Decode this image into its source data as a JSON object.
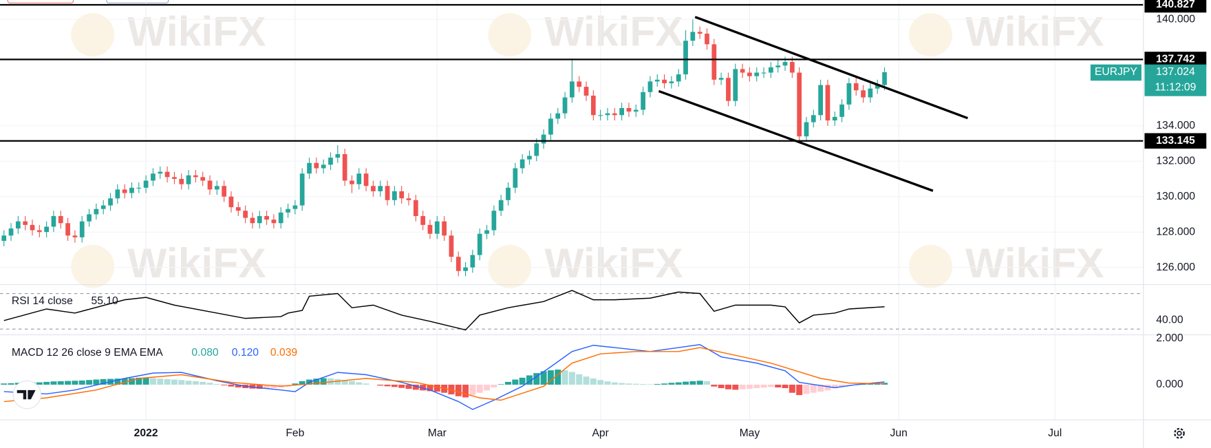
{
  "chart_data": [
    {
      "type": "candlestick",
      "symbol": "EURJPY",
      "countdown": "11:12:09",
      "watermark": "WikiFX",
      "up_color": "#26a69a",
      "down_color": "#ef5350",
      "grid": true,
      "x": [
        -20,
        -19,
        -18,
        -17,
        -16,
        -15,
        -14,
        -13,
        -12,
        -11,
        -10,
        -9,
        -8,
        -7,
        -6,
        -5,
        -4,
        -3,
        -2,
        -1,
        0,
        1,
        2,
        3,
        4,
        5,
        6,
        7,
        8,
        9,
        10,
        11,
        12,
        13,
        14,
        15,
        16,
        17,
        18,
        19,
        20,
        21,
        22,
        23,
        24,
        25,
        26,
        27,
        28,
        29,
        30,
        31,
        32,
        33,
        34,
        35,
        36,
        37,
        38,
        39,
        40,
        41,
        42,
        43,
        44,
        45,
        46,
        47,
        48,
        49,
        50,
        51,
        52,
        53,
        54,
        55,
        56,
        57,
        58,
        59,
        60,
        61,
        62,
        63,
        64,
        65,
        66,
        67,
        68,
        69,
        70,
        71,
        72,
        73,
        74,
        75,
        76,
        77,
        78,
        79,
        80,
        81,
        82,
        83,
        84,
        85,
        86,
        87,
        88,
        89,
        90,
        91,
        92,
        93,
        94,
        95,
        96,
        97,
        98,
        99,
        100,
        101,
        102,
        103,
        104
      ],
      "open": [
        127.5,
        127.8,
        128.2,
        128.6,
        128.4,
        128.1,
        128.0,
        128.3,
        128.9,
        128.5,
        127.8,
        127.7,
        128.6,
        129.0,
        129.3,
        129.5,
        129.9,
        130.4,
        130.2,
        130.5,
        130.5,
        130.9,
        131.3,
        131.4,
        131.1,
        131.0,
        130.7,
        131.2,
        131.1,
        130.9,
        130.4,
        130.6,
        130.0,
        129.4,
        129.2,
        128.8,
        128.5,
        128.9,
        128.7,
        128.5,
        129.1,
        129.3,
        129.5,
        131.3,
        131.9,
        131.6,
        131.8,
        132.2,
        132.4,
        130.9,
        130.7,
        131.3,
        130.6,
        130.3,
        130.6,
        129.8,
        130.3,
        129.9,
        129.8,
        128.9,
        128.4,
        127.9,
        128.6,
        127.8,
        126.6,
        125.8,
        126.0,
        126.7,
        127.9,
        128.1,
        129.2,
        129.8,
        130.5,
        131.6,
        132.1,
        132.3,
        133.0,
        133.5,
        134.4,
        134.7,
        135.6,
        136.5,
        136.2,
        135.7,
        134.6,
        134.6,
        134.7,
        134.6,
        135.0,
        134.8,
        134.9,
        135.9,
        136.5,
        136.6,
        136.4,
        136.5,
        136.9,
        138.8,
        139.3,
        139.2,
        138.6,
        136.6,
        136.7,
        135.4,
        137.2,
        137.0,
        136.8,
        137.0,
        137.0,
        137.3,
        137.4,
        137.6,
        137.0,
        133.4,
        134.2,
        134.6,
        136.3,
        134.3,
        134.5,
        135.2,
        136.4,
        136.0,
        135.6,
        136.1,
        136.3
      ],
      "high": [
        128.1,
        128.5,
        128.9,
        128.9,
        128.7,
        128.4,
        128.6,
        129.2,
        129.2,
        128.8,
        128.1,
        128.9,
        129.3,
        129.6,
        129.8,
        130.2,
        130.7,
        130.7,
        130.8,
        130.8,
        131.2,
        131.6,
        131.7,
        131.7,
        131.4,
        131.3,
        131.5,
        131.5,
        131.4,
        131.2,
        130.9,
        130.9,
        130.3,
        129.7,
        129.5,
        129.1,
        129.2,
        129.2,
        129.0,
        129.4,
        129.6,
        129.8,
        131.6,
        132.2,
        132.2,
        132.1,
        132.5,
        132.9,
        132.7,
        131.2,
        131.6,
        131.6,
        130.9,
        130.9,
        130.9,
        130.6,
        130.6,
        130.2,
        130.1,
        129.2,
        128.7,
        128.9,
        128.9,
        128.1,
        126.9,
        126.3,
        127.0,
        128.2,
        128.4,
        129.5,
        130.1,
        130.8,
        131.9,
        132.4,
        132.6,
        133.3,
        133.8,
        134.7,
        135.0,
        135.9,
        137.8,
        136.8,
        136.5,
        136.0,
        134.9,
        135.0,
        135.0,
        135.3,
        135.3,
        135.2,
        136.2,
        136.8,
        136.9,
        136.9,
        136.8,
        137.2,
        139.4,
        140.0,
        139.6,
        139.5,
        138.9,
        137.0,
        137.0,
        137.5,
        137.5,
        137.3,
        137.3,
        137.3,
        137.6,
        137.7,
        137.9,
        137.9,
        137.3,
        134.5,
        134.9,
        136.6,
        136.6,
        134.8,
        135.5,
        136.7,
        136.7,
        136.3,
        136.4,
        136.6,
        137.3
      ],
      "low": [
        127.2,
        127.5,
        127.9,
        128.1,
        127.8,
        127.7,
        127.7,
        128.0,
        128.2,
        127.5,
        127.4,
        127.4,
        128.3,
        128.7,
        129.0,
        129.2,
        129.6,
        129.9,
        129.9,
        130.2,
        130.2,
        130.6,
        131.0,
        130.8,
        130.7,
        130.4,
        130.4,
        130.8,
        130.6,
        130.1,
        130.1,
        129.7,
        129.1,
        128.9,
        128.5,
        128.2,
        128.2,
        128.4,
        128.2,
        128.2,
        128.8,
        129.0,
        129.2,
        131.0,
        131.3,
        131.3,
        131.5,
        131.9,
        130.6,
        130.2,
        130.4,
        130.3,
        130.0,
        130.0,
        129.5,
        129.5,
        129.6,
        129.5,
        128.6,
        128.1,
        127.6,
        127.6,
        127.5,
        126.3,
        125.5,
        125.5,
        125.7,
        126.4,
        127.6,
        127.8,
        128.9,
        129.5,
        130.2,
        131.3,
        131.8,
        132.0,
        132.7,
        133.2,
        134.1,
        134.4,
        135.3,
        135.9,
        135.4,
        134.3,
        134.3,
        134.3,
        134.3,
        134.3,
        134.5,
        134.5,
        134.6,
        135.6,
        136.2,
        136.1,
        136.1,
        136.2,
        136.6,
        138.5,
        138.9,
        138.3,
        136.3,
        136.3,
        135.1,
        135.1,
        136.7,
        136.5,
        136.5,
        136.7,
        136.7,
        137.0,
        137.1,
        136.7,
        133.0,
        133.1,
        133.9,
        134.3,
        134.0,
        134.0,
        134.2,
        134.9,
        135.7,
        135.3,
        135.3,
        135.8,
        136.0
      ],
      "close": [
        127.8,
        128.2,
        128.6,
        128.4,
        128.1,
        128.0,
        128.3,
        128.9,
        128.5,
        127.8,
        127.7,
        128.6,
        129.0,
        129.3,
        129.5,
        129.9,
        130.4,
        130.2,
        130.5,
        130.5,
        130.9,
        131.3,
        131.4,
        131.1,
        131.0,
        130.7,
        131.2,
        131.1,
        130.9,
        130.4,
        130.6,
        130.0,
        129.4,
        129.2,
        128.8,
        128.5,
        128.9,
        128.7,
        128.5,
        129.1,
        129.3,
        129.5,
        131.3,
        131.9,
        131.6,
        131.8,
        132.2,
        132.4,
        130.9,
        130.7,
        131.3,
        130.6,
        130.3,
        130.6,
        129.8,
        130.3,
        129.9,
        129.8,
        128.9,
        128.4,
        127.9,
        128.6,
        127.8,
        126.6,
        125.8,
        126.0,
        126.7,
        127.9,
        128.1,
        129.2,
        129.8,
        130.5,
        131.6,
        132.1,
        132.3,
        133.0,
        133.5,
        134.4,
        134.7,
        135.6,
        136.5,
        136.2,
        135.7,
        134.6,
        134.6,
        134.7,
        134.6,
        135.0,
        134.8,
        134.9,
        135.9,
        136.5,
        136.6,
        136.4,
        136.5,
        136.9,
        138.8,
        139.3,
        139.2,
        138.6,
        136.6,
        136.7,
        135.4,
        137.2,
        137.0,
        136.8,
        137.0,
        137.0,
        137.3,
        137.4,
        137.6,
        137.0,
        133.4,
        134.2,
        134.6,
        136.3,
        134.3,
        134.5,
        135.2,
        136.4,
        136.0,
        135.6,
        136.1,
        136.3,
        137.024
      ],
      "last_price": 137.024,
      "last_color": "#26a69a",
      "levels": [
        140.827,
        137.742,
        133.145
      ],
      "level_color": "#000000",
      "xlim": [
        -20.55,
        140.4
      ],
      "xticks": [
        {
          "value": 0,
          "label": "2022"
        },
        {
          "value": 21,
          "label": "Feb"
        },
        {
          "value": 41,
          "label": "Mar"
        },
        {
          "value": 64,
          "label": "Apr"
        },
        {
          "value": 85,
          "label": "May"
        },
        {
          "value": 106,
          "label": "Jun"
        },
        {
          "value": 128,
          "label": "Jul"
        }
      ],
      "ylim": [
        125.05,
        141.1
      ],
      "yticks": [
        {
          "value": 126,
          "label": "126.000"
        },
        {
          "value": 128,
          "label": "128.000"
        },
        {
          "value": 130,
          "label": "130.000"
        },
        {
          "value": 132,
          "label": "132.000"
        },
        {
          "value": 134,
          "label": "134.000"
        },
        {
          "value": 140,
          "label": "140.000"
        }
      ]
    },
    {
      "type": "line",
      "title": "RSI 14 close",
      "series": [
        {
          "color": "#000000",
          "value_label": "55.10",
          "x": [
            -20,
            -14,
            -10,
            -3,
            0,
            4,
            10,
            14,
            19,
            20,
            22,
            23,
            27,
            29,
            32,
            36,
            40,
            44,
            45,
            47,
            51,
            56,
            60,
            63,
            66,
            71,
            75,
            78,
            80,
            83,
            88,
            90,
            92,
            94,
            97,
            99,
            104
          ],
          "values": [
            39.6,
            52.6,
            48,
            63,
            65.7,
            57,
            48,
            42,
            44,
            48,
            51,
            67,
            70,
            54,
            57,
            45.7,
            38.7,
            31,
            29,
            45.7,
            54,
            61,
            73.5,
            63,
            63,
            64.8,
            71.7,
            70,
            50,
            57,
            57,
            55,
            37,
            45.7,
            48,
            52.6,
            55.1
          ]
        }
      ],
      "bands": [
        70,
        30
      ],
      "ylim": [
        24.8,
        78.7
      ],
      "yticks": [
        {
          "value": 40,
          "label": "40.00"
        }
      ]
    },
    {
      "type": "bar",
      "title": "MACD 12 26 close 9 EMA EMA",
      "colors": [
        "#26a69a",
        "#b2dfdb",
        "#ffcdd2",
        "#ef5350"
      ],
      "value_color": "#26a69a",
      "value_label": "0.080",
      "values": [
        0.05,
        0.06,
        0.08,
        0.09,
        0.1,
        0.1,
        0.12,
        0.14,
        0.15,
        0.16,
        0.17,
        0.18,
        0.2,
        0.22,
        0.24,
        0.25,
        0.26,
        0.27,
        0.28,
        0.3,
        0.3,
        0.28,
        0.26,
        0.24,
        0.22,
        0.2,
        0.17,
        0.15,
        0.12,
        0.08,
        0.03,
        -0.03,
        -0.08,
        -0.12,
        -0.15,
        -0.17,
        -0.18,
        -0.17,
        -0.15,
        -0.12,
        -0.08,
        0.05,
        0.15,
        0.22,
        0.26,
        0.28,
        0.27,
        0.24,
        0.2,
        0.15,
        0.1,
        0.05,
        0.0,
        -0.04,
        -0.07,
        -0.1,
        -0.14,
        -0.18,
        -0.22,
        -0.25,
        -0.28,
        -0.3,
        -0.35,
        -0.42,
        -0.5,
        -0.55,
        -0.45,
        -0.35,
        -0.25,
        -0.12,
        0.02,
        0.12,
        0.22,
        0.3,
        0.4,
        0.5,
        0.58,
        0.62,
        0.65,
        0.62,
        0.55,
        0.45,
        0.35,
        0.27,
        0.2,
        0.14,
        0.1,
        0.07,
        0.05,
        0.04,
        0.03,
        0.02,
        0.03,
        0.05,
        0.08,
        0.1,
        0.13,
        0.15,
        0.17,
        0.15,
        -0.08,
        -0.15,
        -0.2,
        -0.22,
        -0.2,
        -0.18,
        -0.15,
        -0.13,
        -0.1,
        -0.12,
        -0.15,
        -0.35,
        -0.45,
        -0.4,
        -0.35,
        -0.3,
        -0.25,
        -0.15,
        -0.08,
        -0.03,
        0.0,
        0.03,
        0.05,
        0.07,
        0.08
      ],
      "series": [
        {
          "color": "#2962ff",
          "value_label": "0.120",
          "x": [
            -20,
            -14,
            -10,
            -3,
            1,
            5,
            10,
            14,
            19,
            21,
            23,
            27,
            31,
            36,
            40,
            44,
            46,
            49,
            53,
            57,
            60,
            63,
            66,
            71,
            75,
            78,
            81,
            86,
            90,
            92,
            97,
            100,
            104
          ],
          "values": [
            -0.3,
            -0.4,
            -0.23,
            0.27,
            0.5,
            0.53,
            0.17,
            -0.07,
            -0.23,
            -0.3,
            0.1,
            0.53,
            0.43,
            0.1,
            -0.23,
            -0.73,
            -1.07,
            -0.67,
            -0.07,
            0.77,
            1.43,
            1.7,
            1.6,
            1.43,
            1.6,
            1.73,
            1.2,
            0.93,
            0.6,
            0.1,
            -0.13,
            0,
            0.12
          ]
        },
        {
          "color": "#ff6d00",
          "value_label": "0.039",
          "x": [
            -20,
            -14,
            -7,
            -1,
            5,
            12,
            19,
            23,
            31,
            38,
            43,
            47,
            50,
            56,
            60,
            64,
            69,
            75,
            78,
            84,
            88,
            95,
            99,
            104
          ],
          "values": [
            -0.73,
            -0.57,
            -0.23,
            0.27,
            0.43,
            0.1,
            -0.07,
            0.03,
            0.27,
            0.1,
            -0.23,
            -0.57,
            -0.67,
            -0.07,
            0.93,
            1.33,
            1.43,
            1.43,
            1.6,
            1.2,
            0.93,
            0.27,
            0.07,
            0.039
          ]
        }
      ],
      "ylim": [
        -1.4,
        2.1
      ],
      "yticks": [
        {
          "value": 0,
          "label": "0.000"
        },
        {
          "value": 2,
          "label": "2.000"
        }
      ]
    }
  ]
}
